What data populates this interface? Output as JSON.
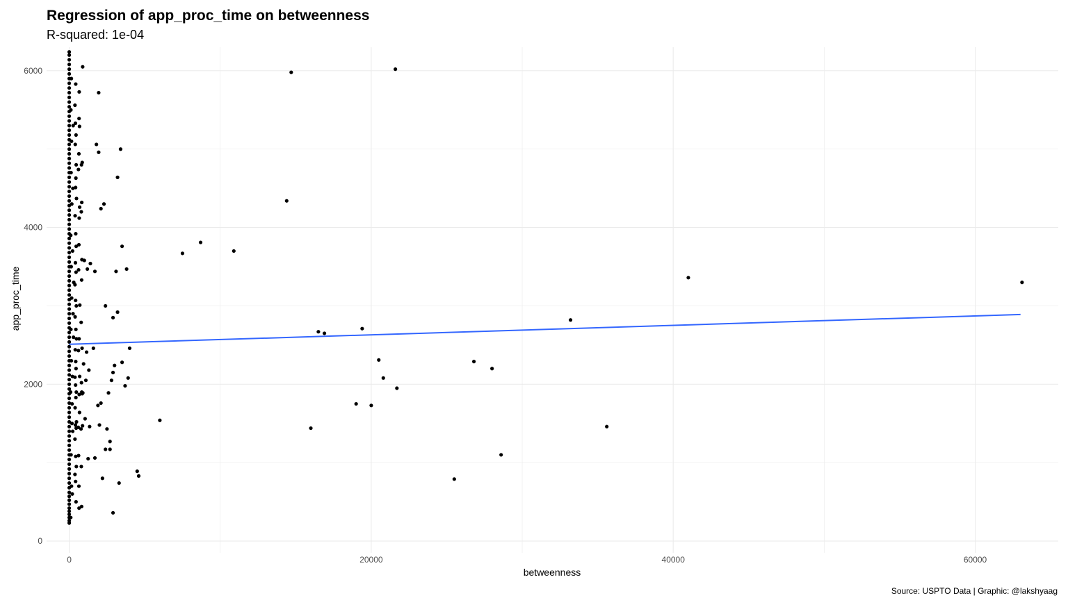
{
  "chart_data": {
    "type": "scatter",
    "title": "Regression of app_proc_time on betweenness",
    "subtitle": "R-squared: 1e-04",
    "caption": "Source: USPTO Data | Graphic: @lakshyaag",
    "xlabel": "betweenness",
    "ylabel": "app_proc_time",
    "xlim": [
      -1500,
      65500
    ],
    "ylim": [
      -150,
      6300
    ],
    "x_ticks": [
      0,
      20000,
      40000,
      60000
    ],
    "x_tick_labels": [
      "0",
      "20000",
      "40000",
      "60000"
    ],
    "y_ticks": [
      0,
      2000,
      4000,
      6000
    ],
    "y_tick_labels": [
      "0",
      "2000",
      "4000",
      "6000"
    ],
    "grid": true,
    "colors": {
      "points": "#000000",
      "regression_line": "#3366ff",
      "grid": "#ebebeb",
      "tick_text": "#4d4d4d"
    },
    "regression": {
      "x": [
        0,
        63000
      ],
      "y": [
        2510,
        2890
      ]
    },
    "points": [
      [
        0,
        230
      ],
      [
        0,
        260
      ],
      [
        0,
        300
      ],
      [
        0,
        340
      ],
      [
        0,
        380
      ],
      [
        0,
        420
      ],
      [
        0,
        470
      ],
      [
        0,
        520
      ],
      [
        0,
        570
      ],
      [
        0,
        620
      ],
      [
        0,
        680
      ],
      [
        0,
        740
      ],
      [
        0,
        800
      ],
      [
        0,
        860
      ],
      [
        0,
        920
      ],
      [
        0,
        980
      ],
      [
        0,
        1040
      ],
      [
        0,
        1100
      ],
      [
        0,
        1160
      ],
      [
        0,
        1220
      ],
      [
        0,
        1280
      ],
      [
        0,
        1340
      ],
      [
        0,
        1400
      ],
      [
        0,
        1460
      ],
      [
        0,
        1520
      ],
      [
        0,
        1580
      ],
      [
        0,
        1640
      ],
      [
        0,
        1700
      ],
      [
        0,
        1760
      ],
      [
        0,
        1820
      ],
      [
        0,
        1880
      ],
      [
        0,
        1940
      ],
      [
        0,
        2000
      ],
      [
        0,
        2060
      ],
      [
        0,
        2120
      ],
      [
        0,
        2180
      ],
      [
        0,
        2240
      ],
      [
        0,
        2300
      ],
      [
        0,
        2360
      ],
      [
        0,
        2420
      ],
      [
        0,
        2480
      ],
      [
        0,
        2540
      ],
      [
        0,
        2600
      ],
      [
        0,
        2660
      ],
      [
        0,
        2720
      ],
      [
        0,
        2780
      ],
      [
        0,
        2840
      ],
      [
        0,
        2900
      ],
      [
        0,
        2960
      ],
      [
        0,
        3020
      ],
      [
        0,
        3080
      ],
      [
        0,
        3140
      ],
      [
        0,
        3200
      ],
      [
        0,
        3260
      ],
      [
        0,
        3320
      ],
      [
        0,
        3380
      ],
      [
        0,
        3440
      ],
      [
        0,
        3500
      ],
      [
        0,
        3560
      ],
      [
        0,
        3620
      ],
      [
        0,
        3680
      ],
      [
        0,
        3740
      ],
      [
        0,
        3800
      ],
      [
        0,
        3860
      ],
      [
        0,
        3920
      ],
      [
        0,
        3980
      ],
      [
        0,
        4040
      ],
      [
        0,
        4100
      ],
      [
        0,
        4160
      ],
      [
        0,
        4220
      ],
      [
        0,
        4280
      ],
      [
        0,
        4340
      ],
      [
        0,
        4400
      ],
      [
        0,
        4460
      ],
      [
        0,
        4520
      ],
      [
        0,
        4580
      ],
      [
        0,
        4640
      ],
      [
        0,
        4700
      ],
      [
        0,
        4760
      ],
      [
        0,
        4820
      ],
      [
        0,
        4880
      ],
      [
        0,
        4940
      ],
      [
        0,
        5000
      ],
      [
        0,
        5060
      ],
      [
        0,
        5120
      ],
      [
        0,
        5180
      ],
      [
        0,
        5240
      ],
      [
        0,
        5300
      ],
      [
        0,
        5360
      ],
      [
        0,
        5420
      ],
      [
        0,
        5480
      ],
      [
        0,
        5540
      ],
      [
        0,
        5600
      ],
      [
        0,
        5660
      ],
      [
        0,
        5720
      ],
      [
        0,
        5780
      ],
      [
        0,
        5840
      ],
      [
        0,
        5900
      ],
      [
        0,
        5960
      ],
      [
        0,
        6020
      ],
      [
        0,
        6080
      ],
      [
        0,
        6140
      ],
      [
        0,
        6200
      ],
      [
        0,
        6240
      ],
      [
        100,
        300
      ],
      [
        150,
        700
      ],
      [
        120,
        1100
      ],
      [
        180,
        1500
      ],
      [
        90,
        1900
      ],
      [
        140,
        2300
      ],
      [
        110,
        2700
      ],
      [
        160,
        3100
      ],
      [
        130,
        3500
      ],
      [
        100,
        3900
      ],
      [
        170,
        4300
      ],
      [
        120,
        4700
      ],
      [
        150,
        5100
      ],
      [
        110,
        5500
      ],
      [
        140,
        5900
      ],
      [
        200,
        600
      ],
      [
        230,
        1400
      ],
      [
        210,
        2100
      ],
      [
        250,
        2900
      ],
      [
        220,
        3700
      ],
      [
        240,
        4500
      ],
      [
        260,
        5300
      ],
      [
        190,
        1750
      ],
      [
        280,
        2600
      ],
      [
        300,
        3300
      ],
      [
        450,
        500
      ],
      [
        420,
        760
      ],
      [
        380,
        850
      ],
      [
        470,
        950
      ],
      [
        430,
        1080
      ],
      [
        380,
        1300
      ],
      [
        460,
        1440
      ],
      [
        410,
        1480
      ],
      [
        480,
        1520
      ],
      [
        390,
        1700
      ],
      [
        440,
        1830
      ],
      [
        470,
        1900
      ],
      [
        420,
        1990
      ],
      [
        380,
        2090
      ],
      [
        450,
        2200
      ],
      [
        430,
        2290
      ],
      [
        400,
        2440
      ],
      [
        480,
        2580
      ],
      [
        440,
        2700
      ],
      [
        390,
        2860
      ],
      [
        470,
        3000
      ],
      [
        420,
        3070
      ],
      [
        380,
        3270
      ],
      [
        450,
        3430
      ],
      [
        410,
        3550
      ],
      [
        460,
        3760
      ],
      [
        430,
        3920
      ],
      [
        390,
        4150
      ],
      [
        480,
        4370
      ],
      [
        420,
        4510
      ],
      [
        440,
        4630
      ],
      [
        460,
        4800
      ],
      [
        400,
        5060
      ],
      [
        450,
        5180
      ],
      [
        410,
        5330
      ],
      [
        380,
        5560
      ],
      [
        430,
        5830
      ],
      [
        650,
        420
      ],
      [
        640,
        700
      ],
      [
        620,
        1090
      ],
      [
        600,
        1450
      ],
      [
        680,
        1640
      ],
      [
        660,
        1870
      ],
      [
        690,
        2100
      ],
      [
        610,
        2430
      ],
      [
        650,
        2580
      ],
      [
        700,
        3010
      ],
      [
        620,
        3460
      ],
      [
        640,
        3780
      ],
      [
        660,
        4120
      ],
      [
        690,
        4260
      ],
      [
        610,
        4740
      ],
      [
        640,
        4940
      ],
      [
        680,
        5290
      ],
      [
        650,
        5390
      ],
      [
        660,
        5730
      ],
      [
        820,
        440
      ],
      [
        800,
        950
      ],
      [
        780,
        1430
      ],
      [
        830,
        1900
      ],
      [
        810,
        2020
      ],
      [
        850,
        2460
      ],
      [
        790,
        2790
      ],
      [
        820,
        3330
      ],
      [
        840,
        3590
      ],
      [
        800,
        4200
      ],
      [
        830,
        4320
      ],
      [
        810,
        4800
      ],
      [
        860,
        4830
      ],
      [
        890,
        6050
      ],
      [
        860,
        1880
      ],
      [
        900,
        1890
      ],
      [
        880,
        1470
      ],
      [
        950,
        2260
      ],
      [
        1000,
        3580
      ],
      [
        1050,
        1560
      ],
      [
        1100,
        2050
      ],
      [
        1150,
        2410
      ],
      [
        1200,
        3470
      ],
      [
        1250,
        1050
      ],
      [
        1300,
        2180
      ],
      [
        1350,
        1460
      ],
      [
        1400,
        3540
      ],
      [
        1600,
        2460
      ],
      [
        1700,
        3440
      ],
      [
        1700,
        1060
      ],
      [
        1800,
        5060
      ],
      [
        1900,
        1730
      ],
      [
        1950,
        4960
      ],
      [
        1950,
        5720
      ],
      [
        2000,
        1480
      ],
      [
        2100,
        4240
      ],
      [
        2100,
        1760
      ],
      [
        2200,
        800
      ],
      [
        2300,
        4300
      ],
      [
        2400,
        1170
      ],
      [
        2400,
        3000
      ],
      [
        2500,
        1430
      ],
      [
        2600,
        1890
      ],
      [
        2700,
        1270
      ],
      [
        2700,
        1170
      ],
      [
        2800,
        2050
      ],
      [
        2900,
        2850
      ],
      [
        2900,
        2150
      ],
      [
        2900,
        360
      ],
      [
        3000,
        2240
      ],
      [
        3100,
        3440
      ],
      [
        3200,
        2920
      ],
      [
        3200,
        4640
      ],
      [
        3300,
        740
      ],
      [
        3400,
        5000
      ],
      [
        3500,
        2280
      ],
      [
        3500,
        3760
      ],
      [
        3700,
        1980
      ],
      [
        3800,
        3470
      ],
      [
        3900,
        2080
      ],
      [
        4000,
        2460
      ],
      [
        4500,
        890
      ],
      [
        4600,
        830
      ],
      [
        6000,
        1540
      ],
      [
        7500,
        3670
      ],
      [
        8700,
        3810
      ],
      [
        10900,
        3700
      ],
      [
        14400,
        4340
      ],
      [
        14700,
        5980
      ],
      [
        16000,
        1440
      ],
      [
        16500,
        2670
      ],
      [
        16900,
        2650
      ],
      [
        19000,
        1750
      ],
      [
        19400,
        2710
      ],
      [
        20000,
        1730
      ],
      [
        20500,
        2310
      ],
      [
        20800,
        2080
      ],
      [
        21600,
        6020
      ],
      [
        21700,
        1950
      ],
      [
        25500,
        790
      ],
      [
        26800,
        2290
      ],
      [
        28000,
        2200
      ],
      [
        28600,
        1100
      ],
      [
        33200,
        2820
      ],
      [
        35600,
        1460
      ],
      [
        41000,
        3360
      ],
      [
        63100,
        3300
      ]
    ]
  }
}
